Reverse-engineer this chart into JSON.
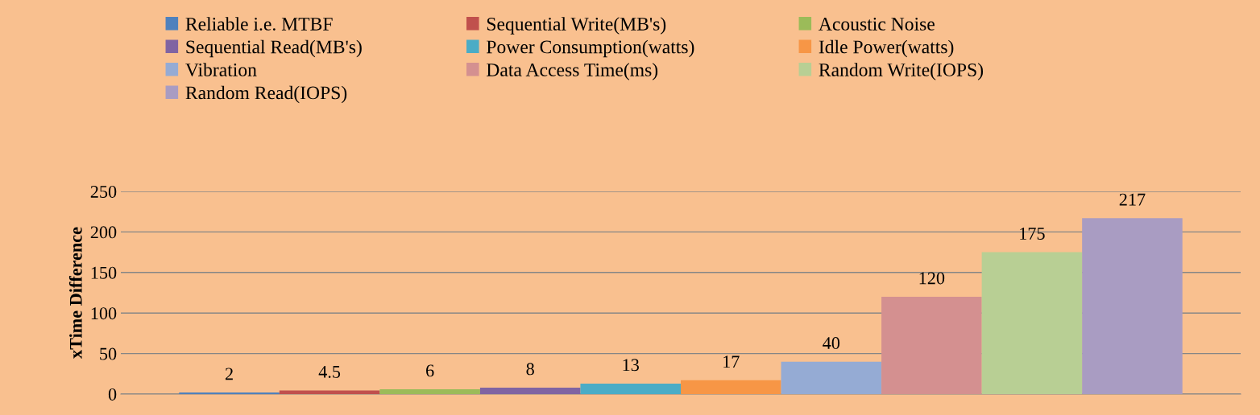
{
  "chart_data": {
    "type": "bar",
    "ylabel": "xTime Difference",
    "categories": [
      null
    ],
    "series": [
      {
        "name": "Reliable i.e. MTBF",
        "color": "#4f81bd",
        "values": [
          2
        ]
      },
      {
        "name": "Sequential Write(MB's)",
        "color": "#c0504d",
        "values": [
          4.5
        ]
      },
      {
        "name": "Acoustic Noise",
        "color": "#9bbb59",
        "values": [
          6
        ]
      },
      {
        "name": "Sequential Read(MB's)",
        "color": "#8064a2",
        "values": [
          8
        ]
      },
      {
        "name": "Power Consumption(watts)",
        "color": "#4bacc6",
        "values": [
          13
        ]
      },
      {
        "name": "Idle Power(watts)",
        "color": "#f79646",
        "values": [
          17
        ]
      },
      {
        "name": "Vibration",
        "color": "#95abd4",
        "values": [
          40
        ]
      },
      {
        "name": "Data Access Time(ms)",
        "color": "#d49090",
        "values": [
          120
        ]
      },
      {
        "name": "Random Write(IOPS)",
        "color": "#b8cf94",
        "values": [
          175
        ]
      },
      {
        "name": "Random Read(IOPS)",
        "color": "#a99cc2",
        "values": [
          217
        ]
      }
    ],
    "ylim": [
      0,
      250
    ],
    "yticks": [
      0,
      50,
      100,
      150,
      200,
      250
    ],
    "grid": "y",
    "legend": "top",
    "data_labels": true
  }
}
